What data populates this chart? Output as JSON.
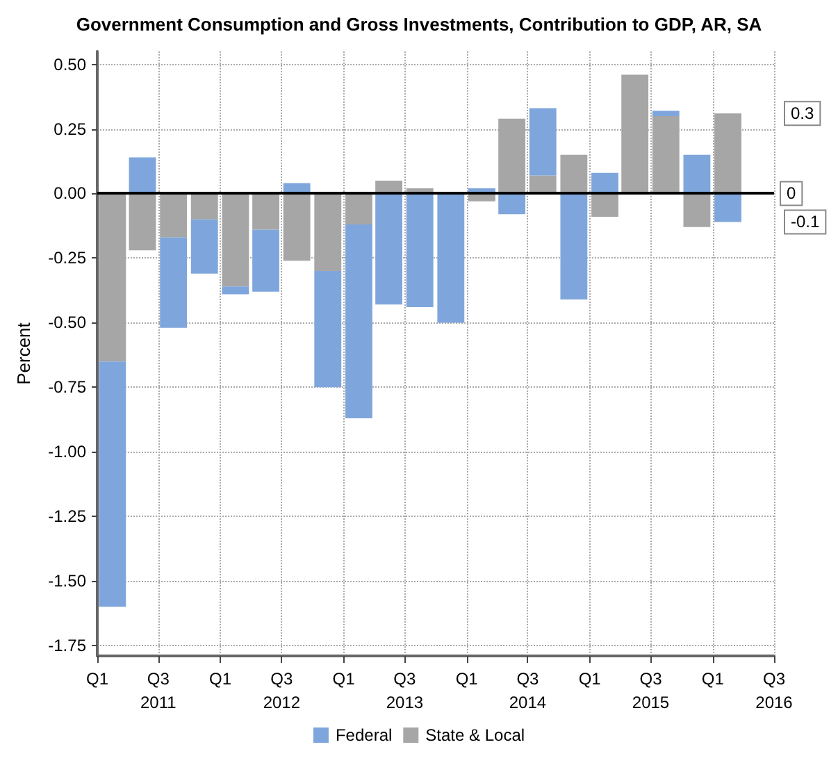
{
  "chart_data": {
    "type": "bar",
    "stacked": true,
    "title": "Government Consumption and Gross Investments, Contribution to GDP, AR, SA",
    "ylabel": "Percent",
    "x": [
      "2011-02-15",
      "2011-05-15",
      "2011-08-15",
      "2011-11-15",
      "2012-02-15",
      "2012-05-15",
      "2012-08-15",
      "2012-11-15",
      "2013-02-15",
      "2013-05-15",
      "2013-08-15",
      "2013-11-15",
      "2014-02-15",
      "2014-05-15",
      "2014-08-15",
      "2014-11-15",
      "2015-02-15",
      "2015-05-15",
      "2015-08-15",
      "2015-11-15",
      "2016-02-15"
    ],
    "series": [
      {
        "name": "State & Local",
        "color": "#a6a6a6",
        "values": [
          -0.65,
          -0.22,
          -0.17,
          -0.1,
          -0.36,
          -0.14,
          -0.26,
          -0.3,
          -0.12,
          0.05,
          0.02,
          0.0,
          -0.03,
          0.29,
          0.07,
          0.15,
          -0.09,
          0.46,
          0.3,
          -0.13,
          0.31
        ]
      },
      {
        "name": "Federal",
        "color": "#7fa6dc",
        "values": [
          -0.95,
          0.14,
          -0.35,
          -0.21,
          -0.03,
          -0.24,
          0.04,
          -0.45,
          -0.75,
          -0.43,
          -0.44,
          -0.5,
          0.02,
          -0.08,
          0.26,
          -0.41,
          0.08,
          0.0,
          0.02,
          0.15,
          -0.11
        ]
      }
    ],
    "xlim": [
      "2011-01",
      "2016-07"
    ],
    "xticks": [
      {
        "value": "2011-01",
        "label": "Q1"
      },
      {
        "value": "2011-07",
        "label": "Q3\n2011"
      },
      {
        "value": "2012-01",
        "label": "Q1"
      },
      {
        "value": "2012-07",
        "label": "Q3\n2012"
      },
      {
        "value": "2013-01",
        "label": "Q1"
      },
      {
        "value": "2013-07",
        "label": "Q3\n2013"
      },
      {
        "value": "2014-01",
        "label": "Q1"
      },
      {
        "value": "2014-07",
        "label": "Q3\n2014"
      },
      {
        "value": "2015-01",
        "label": "Q1"
      },
      {
        "value": "2015-07",
        "label": "Q3\n2015"
      },
      {
        "value": "2016-01",
        "label": "Q1"
      },
      {
        "value": "2016-07",
        "label": "Q3\n2016"
      }
    ],
    "ylim": [
      -1.79,
      0.55
    ],
    "yticks": [
      {
        "value": 0.5,
        "label": "0.50"
      },
      {
        "value": 0.25,
        "label": "0.25"
      },
      {
        "value": 0,
        "label": "0.00"
      },
      {
        "value": -0.25,
        "label": "-0.25"
      },
      {
        "value": -0.5,
        "label": "-0.50"
      },
      {
        "value": -0.75,
        "label": "-0.75"
      },
      {
        "value": -1,
        "label": "-1.00"
      },
      {
        "value": -1.25,
        "label": "-1.25"
      },
      {
        "value": -1.5,
        "label": "-1.50"
      },
      {
        "value": -1.75,
        "label": "-1.75"
      }
    ],
    "ref_lines": [
      {
        "axis": "y",
        "value": 0,
        "label": "0",
        "color": "#000000"
      }
    ],
    "annotations": [
      "0.3",
      "-0.1"
    ],
    "grid": true,
    "legend": "bottom"
  }
}
